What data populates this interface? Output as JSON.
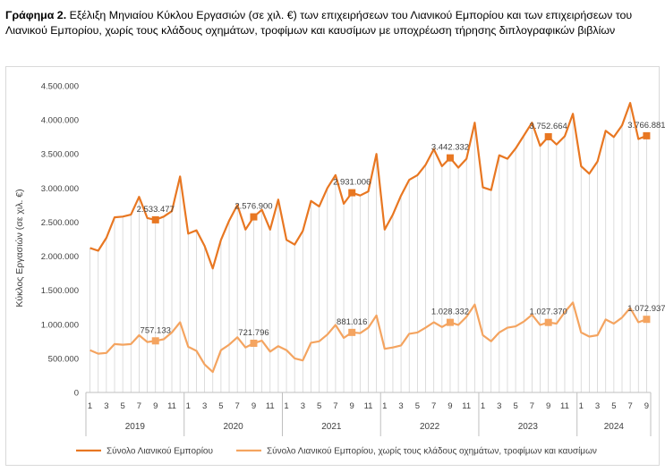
{
  "title": {
    "prefix": "Γράφημα 2.",
    "text": "Εξέλιξη Μηνιαίου Κύκλου Εργασιών (σε χιλ. €) των επιχειρήσεων του Λιανικού Εμπορίου και των επιχειρήσεων του Λιανικού Εμπορίου, χωρίς τους κλάδους οχημάτων, τροφίμων και καυσίμων με υποχρέωση τήρησης διπλογραφικών βιβλίων"
  },
  "colors": {
    "series1": "#E87722",
    "series2": "#F4A460",
    "drop_lines": "#d4d4d4",
    "axis": "#bfbfbf"
  },
  "chart_data": {
    "type": "line",
    "ylabel": "Κύκλος Εργασιών (σε χιλ. €)",
    "ylim": [
      0,
      4500000
    ],
    "yticks": [
      0,
      500000,
      1000000,
      1500000,
      2000000,
      2500000,
      3000000,
      3500000,
      4000000,
      4500000
    ],
    "ytick_labels": [
      "0",
      "500.000",
      "1.000.000",
      "1.500.000",
      "2.000.000",
      "2.500.000",
      "3.000.000",
      "3.500.000",
      "4.000.000",
      "4.500.000"
    ],
    "x_month_labels": [
      "1",
      "3",
      "5",
      "7",
      "9",
      "11",
      "1",
      "3",
      "5",
      "7",
      "9",
      "11",
      "1",
      "3",
      "5",
      "7",
      "9",
      "11",
      "1",
      "3",
      "5",
      "7",
      "9",
      "11",
      "1",
      "3",
      "5",
      "7",
      "9",
      "11",
      "1",
      "3",
      "5",
      "7",
      "9"
    ],
    "years": [
      "2019",
      "2020",
      "2021",
      "2022",
      "2023",
      "2024"
    ],
    "legend_position": "bottom",
    "series": [
      {
        "name": "Σύνολο Λιανικού Εμπορίου",
        "values": [
          2120000,
          2080000,
          2270000,
          2570000,
          2580000,
          2610000,
          2870000,
          2560000,
          2533477,
          2580000,
          2660000,
          3170000,
          2330000,
          2380000,
          2150000,
          1820000,
          2240000,
          2520000,
          2750000,
          2390000,
          2576900,
          2680000,
          2390000,
          2830000,
          2240000,
          2170000,
          2370000,
          2810000,
          2730000,
          3000000,
          3190000,
          2770000,
          2931006,
          2890000,
          2950000,
          3500000,
          2390000,
          2610000,
          2890000,
          3120000,
          3190000,
          3340000,
          3570000,
          3320000,
          3442332,
          3300000,
          3430000,
          3960000,
          3010000,
          2970000,
          3480000,
          3430000,
          3580000,
          3770000,
          3960000,
          3620000,
          3752664,
          3640000,
          3760000,
          4090000,
          3320000,
          3210000,
          3390000,
          3840000,
          3750000,
          3920000,
          4250000,
          3720000,
          3766881
        ],
        "labels": [
          {
            "index": 8,
            "text": "2.533.477"
          },
          {
            "index": 20,
            "text": "2.576.900"
          },
          {
            "index": 32,
            "text": "2.931.006"
          },
          {
            "index": 44,
            "text": "3.442.332"
          },
          {
            "index": 56,
            "text": "3.752.664"
          },
          {
            "index": 68,
            "text": "3.766.881"
          }
        ]
      },
      {
        "name": "Σύνολο Λιανικού Εμπορίου, χωρίς τους κλάδους οχημάτων, τροφίμων και καυσίμων",
        "values": [
          620000,
          570000,
          580000,
          710000,
          700000,
          710000,
          840000,
          740000,
          757133,
          780000,
          880000,
          1030000,
          670000,
          610000,
          410000,
          300000,
          620000,
          700000,
          810000,
          660000,
          721796,
          760000,
          600000,
          680000,
          620000,
          500000,
          470000,
          730000,
          750000,
          850000,
          990000,
          800000,
          881016,
          870000,
          950000,
          1130000,
          640000,
          660000,
          690000,
          860000,
          880000,
          950000,
          1030000,
          960000,
          1028332,
          990000,
          1110000,
          1290000,
          840000,
          750000,
          880000,
          950000,
          970000,
          1040000,
          1140000,
          990000,
          1027370,
          1010000,
          1180000,
          1320000,
          880000,
          820000,
          840000,
          1070000,
          1010000,
          1100000,
          1240000,
          1030000,
          1072937
        ],
        "labels": [
          {
            "index": 8,
            "text": "757.133"
          },
          {
            "index": 20,
            "text": "721.796"
          },
          {
            "index": 32,
            "text": "881.016"
          },
          {
            "index": 44,
            "text": "1.028.332"
          },
          {
            "index": 56,
            "text": "1.027.370"
          },
          {
            "index": 68,
            "text": "1.072.937"
          }
        ]
      }
    ]
  }
}
